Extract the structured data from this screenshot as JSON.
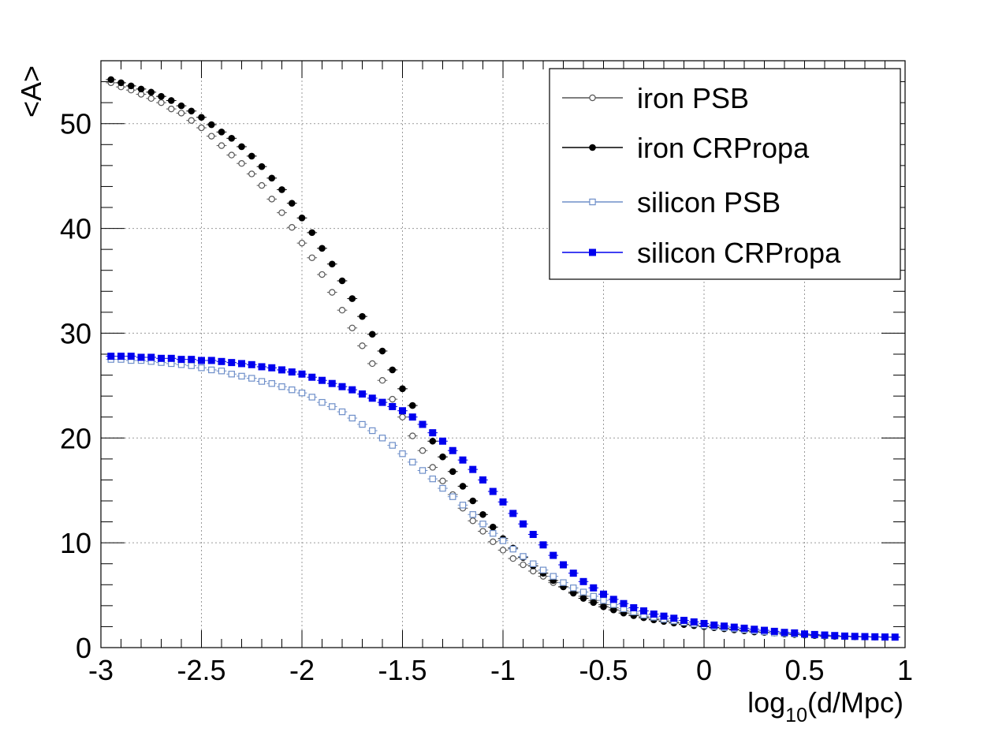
{
  "chart_data": {
    "type": "scatter",
    "title": "",
    "xlabel": "log10(d/Mpc)",
    "xlabel_parts": {
      "base": "log",
      "sub": "10",
      "rest": "(d/Mpc)"
    },
    "ylabel": "<A>",
    "xlim": [
      -3,
      1
    ],
    "ylim": [
      0,
      56
    ],
    "grid": true,
    "legend_position": "top-right",
    "x_ticks": [
      {
        "value": -3,
        "label": "-3"
      },
      {
        "value": -2.5,
        "label": "-2.5"
      },
      {
        "value": -2,
        "label": "-2"
      },
      {
        "value": -1.5,
        "label": "-1.5"
      },
      {
        "value": -1,
        "label": "-1"
      },
      {
        "value": -0.5,
        "label": "-0.5"
      },
      {
        "value": 0,
        "label": "0"
      },
      {
        "value": 0.5,
        "label": "0.5"
      },
      {
        "value": 1,
        "label": "1"
      }
    ],
    "y_ticks": [
      {
        "value": 0,
        "label": "0"
      },
      {
        "value": 10,
        "label": "10"
      },
      {
        "value": 20,
        "label": "20"
      },
      {
        "value": 30,
        "label": "30"
      },
      {
        "value": 40,
        "label": "40"
      },
      {
        "value": 50,
        "label": "50"
      }
    ],
    "x": [
      -2.95,
      -2.9,
      -2.85,
      -2.8,
      -2.75,
      -2.7,
      -2.65,
      -2.6,
      -2.55,
      -2.5,
      -2.45,
      -2.4,
      -2.35,
      -2.3,
      -2.25,
      -2.2,
      -2.15,
      -2.1,
      -2.05,
      -2.0,
      -1.95,
      -1.9,
      -1.85,
      -1.8,
      -1.75,
      -1.7,
      -1.65,
      -1.6,
      -1.55,
      -1.5,
      -1.45,
      -1.4,
      -1.35,
      -1.3,
      -1.25,
      -1.2,
      -1.15,
      -1.1,
      -1.05,
      -1.0,
      -0.95,
      -0.9,
      -0.85,
      -0.8,
      -0.75,
      -0.7,
      -0.65,
      -0.6,
      -0.55,
      -0.5,
      -0.45,
      -0.4,
      -0.35,
      -0.3,
      -0.25,
      -0.2,
      -0.15,
      -0.1,
      -0.05,
      0.0,
      0.05,
      0.1,
      0.15,
      0.2,
      0.25,
      0.3,
      0.35,
      0.4,
      0.45,
      0.5,
      0.55,
      0.6,
      0.65,
      0.7,
      0.75,
      0.8,
      0.85,
      0.9,
      0.95
    ],
    "series": [
      {
        "name": "iron PSB",
        "color": "#555555",
        "marker": "open-circle",
        "values": [
          53.9,
          53.5,
          53.2,
          52.8,
          52.4,
          52.0,
          51.4,
          51.0,
          50.3,
          49.6,
          48.8,
          47.9,
          47.0,
          46.2,
          45.2,
          44.1,
          42.8,
          41.5,
          40.1,
          38.6,
          37.2,
          35.6,
          33.9,
          32.2,
          30.5,
          28.8,
          27.1,
          25.5,
          23.7,
          22.0,
          20.2,
          18.8,
          17.2,
          15.9,
          14.6,
          13.3,
          12.1,
          11.1,
          10.1,
          9.3,
          8.5,
          7.9,
          7.3,
          6.8,
          6.2,
          5.8,
          5.3,
          4.9,
          4.5,
          4.1,
          3.8,
          3.5,
          3.2,
          2.95,
          2.75,
          2.55,
          2.4,
          2.25,
          2.1,
          2.0,
          1.9,
          1.8,
          1.7,
          1.6,
          1.5,
          1.45,
          1.4,
          1.3,
          1.25,
          1.2,
          1.15,
          1.1,
          1.07,
          1.05,
          1.03,
          1.02,
          1.01,
          1.0,
          1.0
        ]
      },
      {
        "name": "iron CRPropa",
        "color": "#000000",
        "marker": "filled-circle",
        "values": [
          54.2,
          53.9,
          53.6,
          53.3,
          53.0,
          52.6,
          52.2,
          51.7,
          51.2,
          50.6,
          49.9,
          49.2,
          48.6,
          47.8,
          46.9,
          45.9,
          44.8,
          43.7,
          42.4,
          41.0,
          39.6,
          38.1,
          36.6,
          35.0,
          33.3,
          31.6,
          29.9,
          28.3,
          26.5,
          24.7,
          23.1,
          21.3,
          19.7,
          18.2,
          16.8,
          15.4,
          14.0,
          12.7,
          11.5,
          10.4,
          9.5,
          8.6,
          7.8,
          7.1,
          6.4,
          5.8,
          5.2,
          4.7,
          4.3,
          3.9,
          3.6,
          3.3,
          3.05,
          2.85,
          2.65,
          2.5,
          2.35,
          2.2,
          2.1,
          2.0,
          1.9,
          1.8,
          1.7,
          1.6,
          1.5,
          1.45,
          1.4,
          1.3,
          1.25,
          1.2,
          1.15,
          1.1,
          1.07,
          1.05,
          1.03,
          1.02,
          1.01,
          1.0,
          1.0
        ]
      },
      {
        "name": "silicon PSB",
        "color": "#6e8fc9",
        "marker": "open-square",
        "values": [
          27.5,
          27.5,
          27.4,
          27.4,
          27.3,
          27.2,
          27.1,
          27.0,
          26.9,
          26.7,
          26.5,
          26.4,
          26.1,
          25.9,
          25.7,
          25.4,
          25.2,
          24.9,
          24.6,
          24.3,
          23.9,
          23.4,
          23.0,
          22.5,
          21.9,
          21.3,
          20.7,
          20.0,
          19.3,
          18.5,
          17.7,
          16.9,
          16.1,
          15.2,
          14.4,
          13.6,
          12.7,
          11.8,
          10.9,
          10.2,
          9.4,
          8.7,
          8.0,
          7.4,
          6.8,
          6.2,
          5.7,
          5.3,
          4.9,
          4.5,
          4.1,
          3.7,
          3.4,
          3.1,
          2.9,
          2.7,
          2.55,
          2.4,
          2.25,
          2.1,
          2.0,
          1.9,
          1.8,
          1.7,
          1.6,
          1.5,
          1.4,
          1.35,
          1.3,
          1.25,
          1.2,
          1.15,
          1.1,
          1.07,
          1.05,
          1.03,
          1.02,
          1.0,
          1.0
        ]
      },
      {
        "name": "silicon CRPropa",
        "color": "#0000ee",
        "marker": "filled-square",
        "values": [
          27.8,
          27.8,
          27.8,
          27.7,
          27.7,
          27.6,
          27.6,
          27.5,
          27.5,
          27.4,
          27.4,
          27.3,
          27.2,
          27.1,
          27.0,
          26.8,
          26.7,
          26.5,
          26.3,
          26.1,
          25.8,
          25.5,
          25.2,
          24.9,
          24.6,
          24.2,
          23.8,
          23.4,
          23.0,
          22.6,
          22.0,
          21.3,
          20.5,
          19.7,
          18.8,
          17.9,
          17.0,
          16.0,
          14.9,
          13.9,
          12.8,
          11.8,
          10.8,
          9.8,
          8.8,
          7.9,
          7.1,
          6.3,
          5.7,
          5.1,
          4.6,
          4.2,
          3.8,
          3.5,
          3.2,
          3.0,
          2.8,
          2.6,
          2.45,
          2.3,
          2.15,
          2.05,
          1.95,
          1.85,
          1.75,
          1.65,
          1.55,
          1.45,
          1.4,
          1.3,
          1.25,
          1.2,
          1.15,
          1.1,
          1.07,
          1.05,
          1.03,
          1.01,
          1.0
        ]
      }
    ]
  }
}
